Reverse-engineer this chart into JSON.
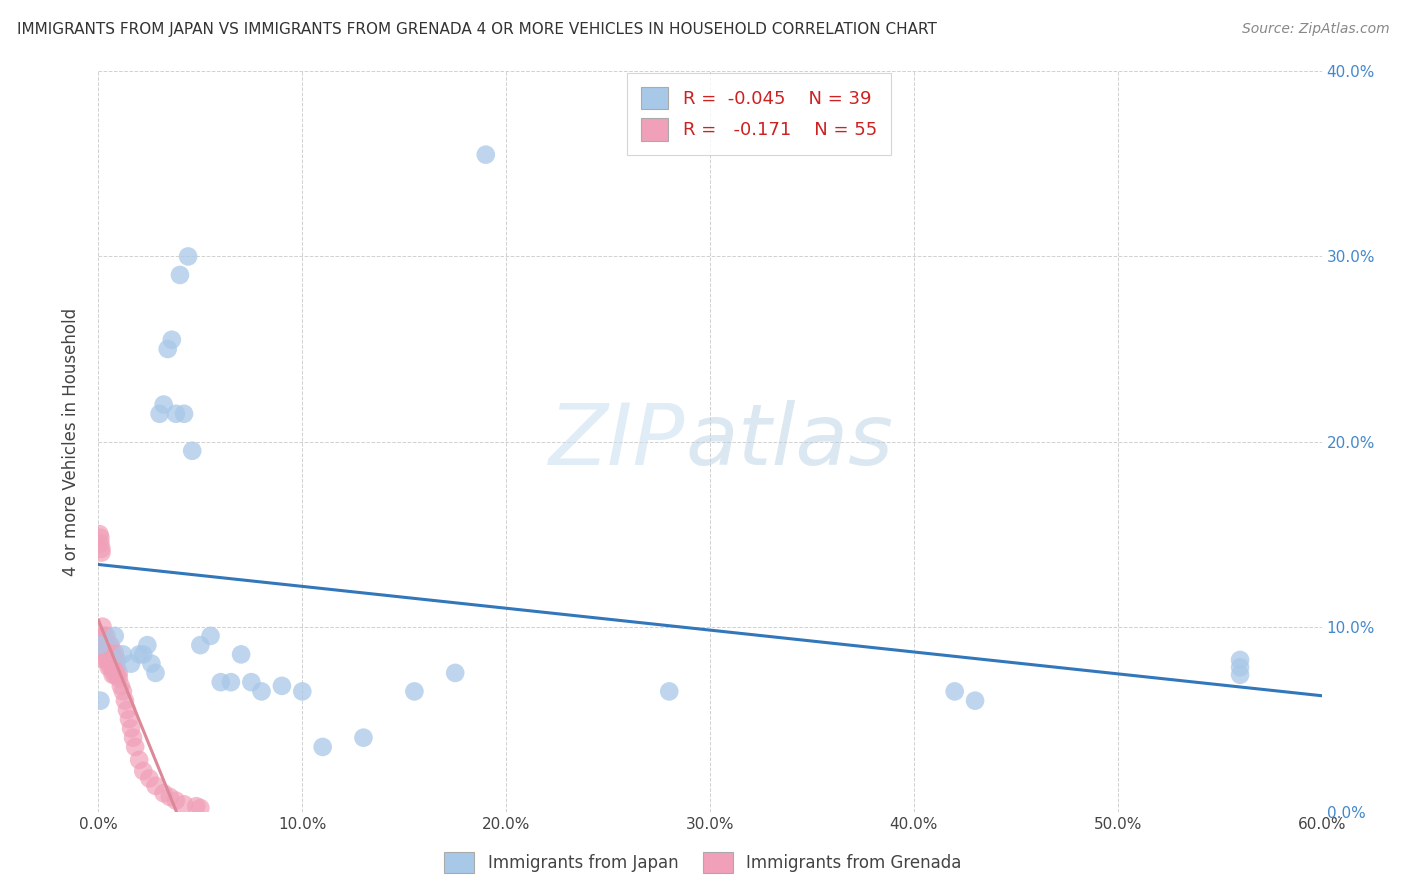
{
  "title": "IMMIGRANTS FROM JAPAN VS IMMIGRANTS FROM GRENADA 4 OR MORE VEHICLES IN HOUSEHOLD CORRELATION CHART",
  "source": "Source: ZipAtlas.com",
  "ylabel": "4 or more Vehicles in Household",
  "xlim": [
    0.0,
    0.6
  ],
  "ylim": [
    0.0,
    0.4
  ],
  "xticks": [
    0.0,
    0.1,
    0.2,
    0.3,
    0.4,
    0.5,
    0.6
  ],
  "yticks": [
    0.0,
    0.1,
    0.2,
    0.3,
    0.4
  ],
  "xtick_labels": [
    "0.0%",
    "10.0%",
    "20.0%",
    "30.0%",
    "40.0%",
    "50.0%",
    "60.0%"
  ],
  "ytick_labels_right": [
    "0.0%",
    "10.0%",
    "20.0%",
    "30.0%",
    "40.0%"
  ],
  "legend1_label": "Immigrants from Japan",
  "legend2_label": "Immigrants from Grenada",
  "r1": "-0.045",
  "n1": "39",
  "r2": "-0.171",
  "n2": "55",
  "japan_color": "#a8c8e8",
  "grenada_color": "#f0a0b8",
  "japan_line_color": "#3377bb",
  "grenada_line_color": "#dd8899",
  "background_color": "#ffffff",
  "watermark_zip": "ZIP",
  "watermark_atlas": "atlas",
  "japan_x": [
    0.008,
    0.012,
    0.016,
    0.02,
    0.022,
    0.024,
    0.026,
    0.028,
    0.03,
    0.032,
    0.034,
    0.036,
    0.038,
    0.04,
    0.042,
    0.044,
    0.046,
    0.05,
    0.055,
    0.06,
    0.065,
    0.07,
    0.075,
    0.08,
    0.09,
    0.1,
    0.11,
    0.13,
    0.155,
    0.175,
    0.19,
    0.28,
    0.42,
    0.43,
    0.56,
    0.56,
    0.56,
    0.0005,
    0.001
  ],
  "japan_y": [
    0.095,
    0.085,
    0.08,
    0.085,
    0.085,
    0.09,
    0.08,
    0.075,
    0.215,
    0.22,
    0.25,
    0.255,
    0.215,
    0.29,
    0.215,
    0.3,
    0.195,
    0.09,
    0.095,
    0.07,
    0.07,
    0.085,
    0.07,
    0.065,
    0.068,
    0.065,
    0.035,
    0.04,
    0.065,
    0.075,
    0.355,
    0.065,
    0.065,
    0.06,
    0.082,
    0.078,
    0.074,
    0.09,
    0.06
  ],
  "grenada_x": [
    0.0005,
    0.001,
    0.001,
    0.0015,
    0.0015,
    0.002,
    0.002,
    0.002,
    0.003,
    0.003,
    0.003,
    0.003,
    0.004,
    0.004,
    0.004,
    0.004,
    0.005,
    0.005,
    0.005,
    0.005,
    0.006,
    0.006,
    0.006,
    0.006,
    0.007,
    0.007,
    0.007,
    0.007,
    0.008,
    0.008,
    0.008,
    0.008,
    0.009,
    0.009,
    0.009,
    0.01,
    0.01,
    0.011,
    0.012,
    0.013,
    0.014,
    0.015,
    0.016,
    0.017,
    0.018,
    0.02,
    0.022,
    0.025,
    0.028,
    0.032,
    0.035,
    0.038,
    0.042,
    0.048,
    0.05
  ],
  "grenada_y": [
    0.15,
    0.148,
    0.145,
    0.142,
    0.14,
    0.1,
    0.095,
    0.09,
    0.095,
    0.09,
    0.086,
    0.082,
    0.095,
    0.09,
    0.086,
    0.082,
    0.09,
    0.086,
    0.082,
    0.078,
    0.09,
    0.086,
    0.082,
    0.078,
    0.086,
    0.082,
    0.078,
    0.074,
    0.086,
    0.082,
    0.078,
    0.074,
    0.082,
    0.078,
    0.074,
    0.075,
    0.072,
    0.068,
    0.065,
    0.06,
    0.055,
    0.05,
    0.045,
    0.04,
    0.035,
    0.028,
    0.022,
    0.018,
    0.014,
    0.01,
    0.008,
    0.006,
    0.004,
    0.003,
    0.002
  ]
}
